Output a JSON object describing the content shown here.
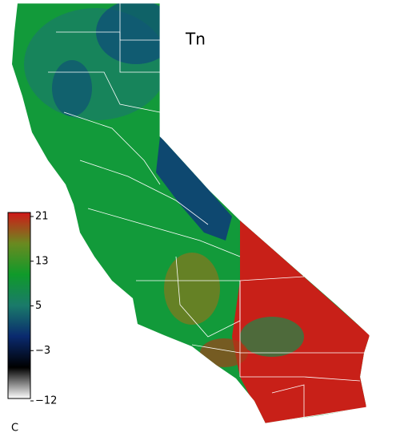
{
  "title": "Tn",
  "colorbar": {
    "unit": "C",
    "lim": [
      -12,
      21
    ],
    "ticks": [
      21,
      13,
      5,
      {
        "value": -3,
        "label": "−3"
      },
      {
        "value": -12,
        "label": "−12"
      }
    ],
    "colors": [
      "#ffffff",
      "#000000",
      "#0a2a6e",
      "#1a7a6a",
      "#0f9a2a",
      "#6a8a20",
      "#d01818"
    ]
  }
}
